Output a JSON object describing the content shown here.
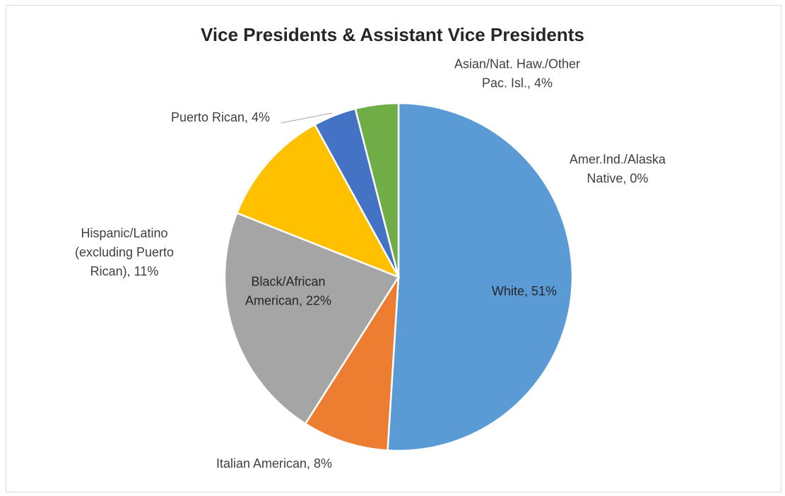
{
  "chart_data": {
    "type": "pie",
    "title": "Vice Presidents & Assistant Vice Presidents",
    "slices": [
      {
        "name": "White",
        "value": 51,
        "label_lines": [
          "White, 51%"
        ],
        "color": "#5b9bd5"
      },
      {
        "name": "Italian American",
        "value": 8,
        "label_lines": [
          "Italian American, 8%"
        ],
        "color": "#ed7d31"
      },
      {
        "name": "Black/African American",
        "value": 22,
        "label_lines": [
          "Black/African",
          "American, 22%"
        ],
        "color": "#a5a5a5"
      },
      {
        "name": "Hispanic/Latino (excluding Puerto Rican)",
        "value": 11,
        "label_lines": [
          "Hispanic/Latino",
          "(excluding Puerto",
          "Rican), 11%"
        ],
        "color": "#ffc000"
      },
      {
        "name": "Puerto Rican",
        "value": 4,
        "label_lines": [
          "Puerto Rican, 4%"
        ],
        "color": "#4472c4"
      },
      {
        "name": "Asian/Nat. Haw./Other Pac. Isl.",
        "value": 4,
        "label_lines": [
          "Asian/Nat. Haw./Other",
          "Pac. Isl., 4%"
        ],
        "color": "#70ad47"
      },
      {
        "name": "Amer.Ind./Alaska Native",
        "value": 0,
        "label_lines": [
          "Amer.Ind./Alaska",
          "Native, 0%"
        ],
        "color": "#264478"
      }
    ],
    "legend": "none",
    "data_labels": "category name and percentage"
  }
}
